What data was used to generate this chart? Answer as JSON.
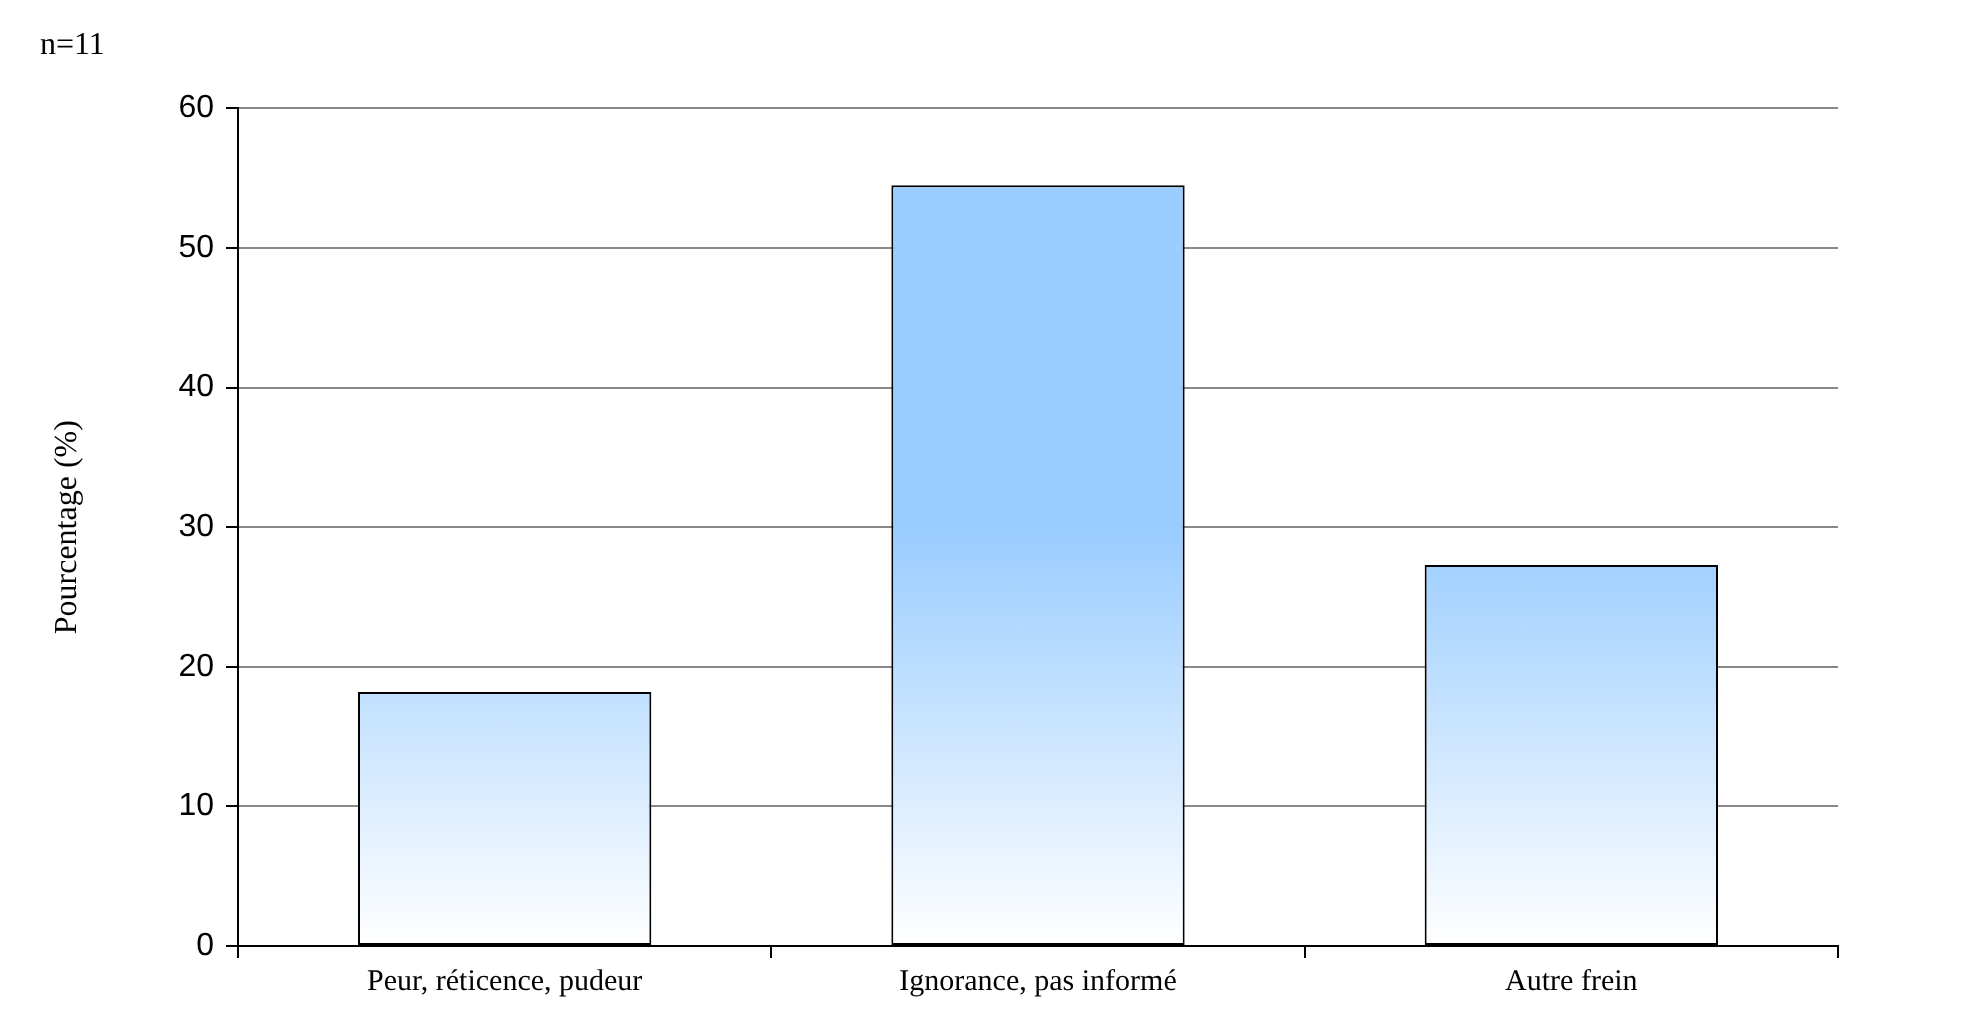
{
  "chart_data": {
    "type": "bar",
    "title": "n=11",
    "ylabel": "Pourcentage (%)",
    "categories": [
      "Peur, réticence, pudeur",
      "Ignorance, pas informé",
      "Autre frein"
    ],
    "values": [
      18.2,
      54.5,
      27.3
    ],
    "color": "#99ccff",
    "ylim": [
      0,
      60
    ],
    "yticks": [
      0,
      10,
      20,
      30,
      40,
      50,
      60
    ],
    "grid": "y",
    "legend": false
  }
}
